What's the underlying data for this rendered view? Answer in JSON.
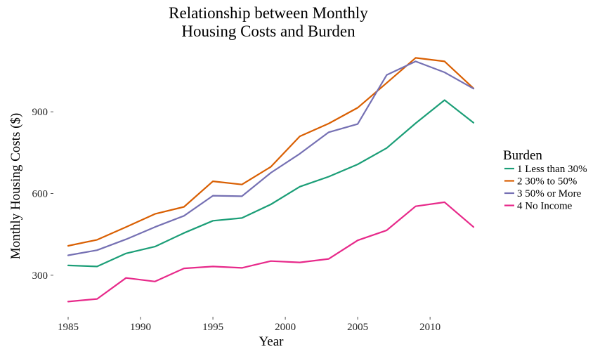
{
  "chart_data": {
    "type": "line",
    "title_lines": [
      "Relationship between Monthly",
      "Housing Costs and Burden"
    ],
    "xlabel": "Year",
    "ylabel": "Monthly Housing Costs ($)",
    "xlim": [
      1985,
      2013
    ],
    "ylim": [
      150,
      1130
    ],
    "x_ticks": [
      1985,
      1990,
      1995,
      2000,
      2005,
      2010
    ],
    "y_ticks": [
      300,
      600,
      900
    ],
    "grid": false,
    "legend": {
      "title": "Burden",
      "position": "right"
    },
    "x": [
      1985,
      1987,
      1989,
      1991,
      1993,
      1995,
      1997,
      1999,
      2001,
      2003,
      2005,
      2007,
      2009,
      2011,
      2013
    ],
    "series": [
      {
        "name": "1 Less than 30%",
        "color": "#1b9e77",
        "values": [
          336,
          332,
          380,
          405,
          455,
          500,
          510,
          560,
          625,
          662,
          707,
          767,
          858,
          943,
          860
        ]
      },
      {
        "name": "2 30% to 50%",
        "color": "#d95f02",
        "values": [
          408,
          430,
          477,
          525,
          551,
          645,
          633,
          698,
          810,
          857,
          915,
          1006,
          1098,
          1085,
          986
        ]
      },
      {
        "name": "3 50% or More",
        "color": "#7570b3",
        "values": [
          373,
          392,
          432,
          477,
          518,
          592,
          590,
          676,
          746,
          825,
          855,
          1035,
          1085,
          1045,
          985
        ]
      },
      {
        "name": "4 No Income",
        "color": "#e7298a",
        "values": [
          203,
          213,
          290,
          277,
          325,
          332,
          327,
          352,
          347,
          360,
          428,
          465,
          553,
          568,
          477
        ]
      }
    ]
  }
}
